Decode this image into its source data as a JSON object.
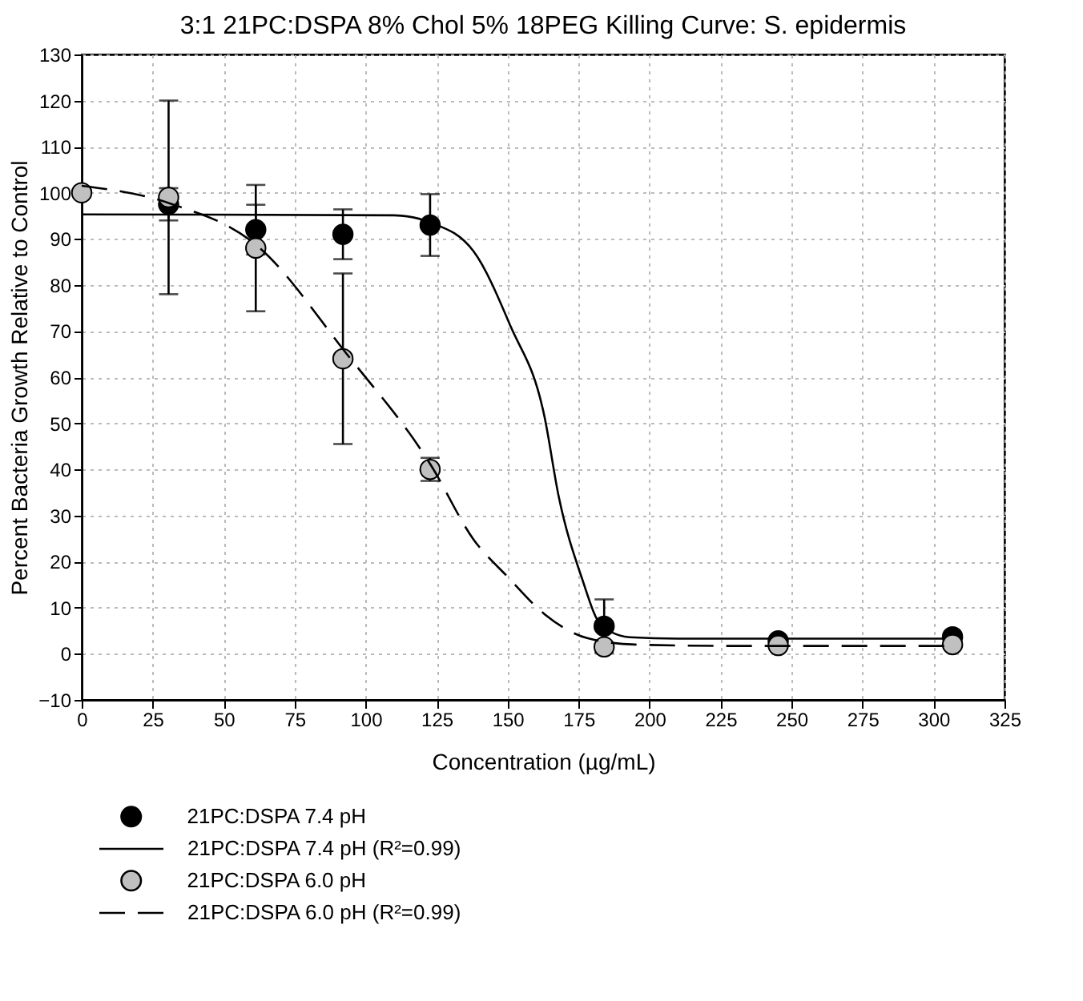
{
  "chart_data": {
    "type": "scatter",
    "title": "3:1 21PC:DSPA 8% Chol 5% 18PEG Killing Curve: S. epidermis",
    "xlabel": "Concentration (µg/mL)",
    "ylabel": "Percent Bacteria Growth Relative to Control",
    "x": [
      0,
      30.6,
      61.3,
      92,
      122.7,
      184,
      245.3,
      306.7
    ],
    "series": [
      {
        "name": "21PC:DSPA 7.4 pH",
        "color": "#000000",
        "x": [
          30.6,
          61.3,
          92,
          122.7,
          184,
          245.3,
          306.7
        ],
        "values": [
          97.5,
          92,
          91,
          93,
          6,
          2.8,
          3.7
        ],
        "errors": [
          3.5,
          5.4,
          5.4,
          6.7,
          5.8,
          null,
          null
        ]
      },
      {
        "name": "21PC:DSPA 7.4 pH (R²=0.99)",
        "type": "line",
        "color": "#000000",
        "line_style": "solid",
        "marker": "none",
        "x": [
          0,
          110,
          123,
          138,
          151,
          163,
          168,
          176,
          183,
          193,
          210,
          307
        ],
        "values": [
          95.3,
          95.1,
          93.5,
          87.3,
          71.1,
          51.4,
          34.1,
          16.7,
          6.2,
          3.6,
          3.3,
          3.3
        ]
      },
      {
        "name": "21PC:DSPA 6.0 pH",
        "color": "#c0c0c0",
        "values": [
          100,
          99,
          88,
          64,
          40,
          1.5,
          1.8,
          2
        ],
        "errors": [
          null,
          21,
          13.7,
          18.5,
          2.5,
          null,
          null,
          null
        ]
      },
      {
        "name": "21PC:DSPA 6.0 pH (R²=0.99)",
        "type": "line",
        "color": "#000000",
        "line_style": "dashed",
        "marker": "none",
        "x": [
          0,
          31,
          62,
          93,
          123,
          138,
          150,
          163,
          178,
          195,
          230,
          307
        ],
        "values": [
          101.5,
          97.7,
          88.4,
          65.3,
          40.9,
          24.8,
          16.7,
          8.6,
          3.4,
          2.0,
          1.7,
          1.7
        ]
      }
    ],
    "xlim": [
      0,
      325
    ],
    "xticks": [
      0,
      25,
      50,
      75,
      100,
      125,
      150,
      175,
      200,
      225,
      250,
      275,
      300,
      325
    ],
    "ylim": [
      -10,
      130
    ],
    "yticks": [
      -10,
      0,
      10,
      20,
      30,
      40,
      50,
      60,
      70,
      80,
      90,
      100,
      110,
      120,
      130
    ],
    "grid": true,
    "legend": "bottom left",
    "marker": "circle"
  }
}
